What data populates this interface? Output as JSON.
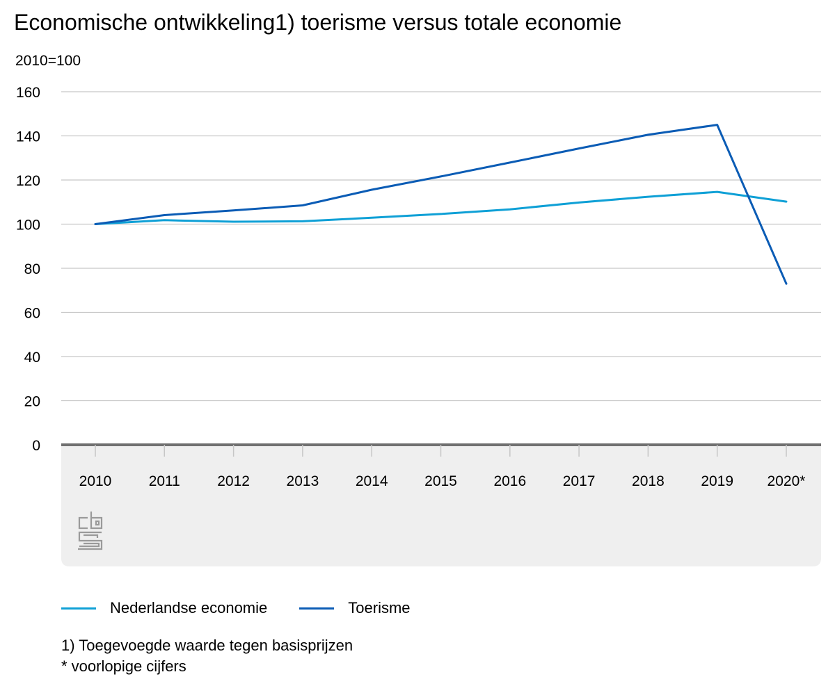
{
  "colors": {
    "series_light": "#0fa0d6",
    "series_dark": "#0b5cb5",
    "grid": "#c8c8c8",
    "axis": "#707070",
    "panel": "#efefef",
    "logo": "#9a9a9a"
  },
  "logo_icon": "cbs-logo-icon",
  "chart_data": {
    "type": "line",
    "title": "Economische ontwikkeling1) toerisme versus totale economie",
    "ylabel": "2010=100",
    "xlabel": "",
    "ylim": [
      0,
      160
    ],
    "yticks": [
      "0",
      "20",
      "40",
      "60",
      "80",
      "100",
      "120",
      "140",
      "160"
    ],
    "grid": true,
    "legend_position": "bottom",
    "categories": [
      "2010",
      "2011",
      "2012",
      "2013",
      "2014",
      "2015",
      "2016",
      "2017",
      "2018",
      "2019",
      "2020*"
    ],
    "series": [
      {
        "name": "Nederlandse economie",
        "values": [
          100,
          101.8,
          101.1,
          101.3,
          102.9,
          104.6,
          106.7,
          109.8,
          112.4,
          114.6,
          110.2
        ]
      },
      {
        "name": "Toerisme",
        "values": [
          100,
          104.1,
          106.2,
          108.5,
          115.6,
          121.6,
          127.9,
          134.3,
          140.5,
          145.0,
          73.0
        ]
      }
    ]
  },
  "footnotes": [
    "1) Toegevoegde waarde tegen basisprijzen",
    "* voorlopige cijfers"
  ]
}
